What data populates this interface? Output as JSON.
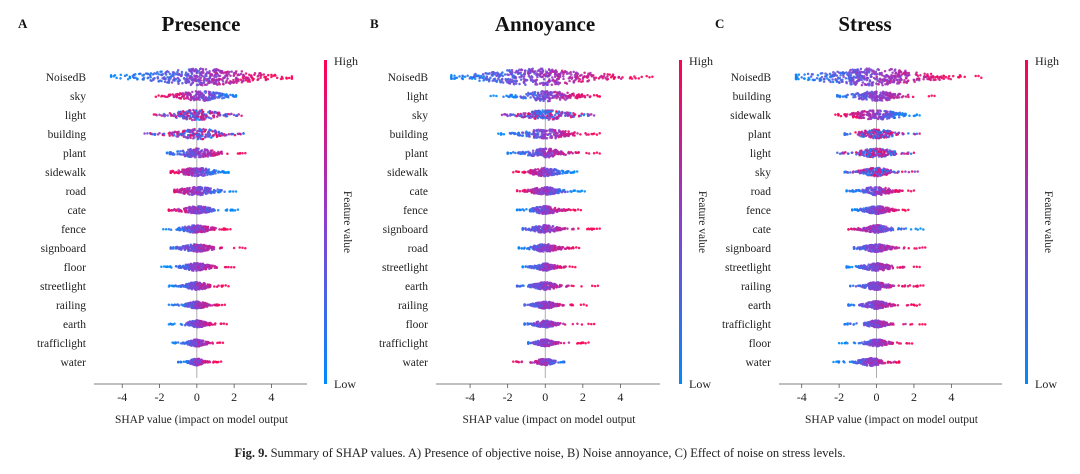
{
  "colors": {
    "high": "#ff0052",
    "low": "#008bfb",
    "mid": "#8a3fd0"
  },
  "chart_data": [
    {
      "type": "scatter",
      "subtype": "shap-beeswarm",
      "panel_letter": "A",
      "title": "Presence",
      "xlabel": "SHAP value (impact on model output",
      "xlim": [
        -5.3,
        5.8
      ],
      "xticks": [
        -4,
        -2,
        0,
        2,
        4
      ],
      "colorbar": {
        "high_label": "High",
        "low_label": "Low",
        "label": "Feature value"
      },
      "features": [
        {
          "name": "NoisedB",
          "min": -4.6,
          "max": 5.1,
          "center": 0.3,
          "spread": 1.9,
          "width": 1.0,
          "corr": 1
        },
        {
          "name": "sky",
          "min": -2.2,
          "max": 2.1,
          "center": 0.2,
          "spread": 0.8,
          "width": 0.75,
          "corr": -1
        },
        {
          "name": "light",
          "min": -2.3,
          "max": 2.4,
          "center": 0.0,
          "spread": 0.8,
          "width": 0.8,
          "corr": 0
        },
        {
          "name": "building",
          "min": -2.8,
          "max": 2.5,
          "center": 0.1,
          "spread": 0.8,
          "width": 0.8,
          "corr": 0
        },
        {
          "name": "plant",
          "min": -1.6,
          "max": 2.6,
          "center": 0.0,
          "spread": 0.7,
          "width": 0.7,
          "corr": 1
        },
        {
          "name": "sidewalk",
          "min": -1.4,
          "max": 1.7,
          "center": 0.0,
          "spread": 0.6,
          "width": 0.65,
          "corr": -1
        },
        {
          "name": "road",
          "min": -1.2,
          "max": 2.1,
          "center": 0.0,
          "spread": 0.6,
          "width": 0.65,
          "corr": -1
        },
        {
          "name": "cate",
          "min": -1.5,
          "max": 2.2,
          "center": 0.0,
          "spread": 0.5,
          "width": 0.6,
          "corr": -1
        },
        {
          "name": "fence",
          "min": -1.8,
          "max": 1.8,
          "center": 0.0,
          "spread": 0.5,
          "width": 0.6,
          "corr": 1
        },
        {
          "name": "signboard",
          "min": -1.4,
          "max": 2.6,
          "center": 0.0,
          "spread": 0.5,
          "width": 0.6,
          "corr": 1
        },
        {
          "name": "floor",
          "min": -1.9,
          "max": 2.0,
          "center": 0.0,
          "spread": 0.45,
          "width": 0.6,
          "corr": 1
        },
        {
          "name": "streetlight",
          "min": -1.5,
          "max": 1.7,
          "center": 0.0,
          "spread": 0.4,
          "width": 0.6,
          "corr": 1
        },
        {
          "name": "railing",
          "min": -1.5,
          "max": 1.5,
          "center": 0.0,
          "spread": 0.35,
          "width": 0.55,
          "corr": 1
        },
        {
          "name": "earth",
          "min": -1.5,
          "max": 1.6,
          "center": 0.0,
          "spread": 0.35,
          "width": 0.55,
          "corr": 1
        },
        {
          "name": "trafficlight",
          "min": -1.3,
          "max": 1.4,
          "center": 0.0,
          "spread": 0.3,
          "width": 0.55,
          "corr": 1
        },
        {
          "name": "water",
          "min": -1.0,
          "max": 1.3,
          "center": 0.0,
          "spread": 0.25,
          "width": 0.5,
          "corr": 1
        }
      ]
    },
    {
      "type": "scatter",
      "subtype": "shap-beeswarm",
      "panel_letter": "B",
      "title": "Annoyance",
      "xlabel": "SHAP value (impact on model output",
      "xlim": [
        -5.6,
        6.0
      ],
      "xticks": [
        -4,
        -2,
        0,
        2,
        4
      ],
      "colorbar": {
        "high_label": "High",
        "low_label": "Low",
        "label": "Feature value"
      },
      "features": [
        {
          "name": "NoisedB",
          "min": -5.0,
          "max": 5.7,
          "center": -0.4,
          "spread": 1.9,
          "width": 1.0,
          "corr": 1
        },
        {
          "name": "light",
          "min": -2.9,
          "max": 2.9,
          "center": 0.2,
          "spread": 0.9,
          "width": 0.8,
          "corr": 1
        },
        {
          "name": "sky",
          "min": -2.3,
          "max": 2.6,
          "center": 0.1,
          "spread": 0.8,
          "width": 0.75,
          "corr": 0
        },
        {
          "name": "building",
          "min": -2.5,
          "max": 2.9,
          "center": 0.1,
          "spread": 0.8,
          "width": 0.75,
          "corr": 1
        },
        {
          "name": "plant",
          "min": -2.0,
          "max": 2.9,
          "center": 0.0,
          "spread": 0.6,
          "width": 0.7,
          "corr": 1
        },
        {
          "name": "sidewalk",
          "min": -1.7,
          "max": 1.7,
          "center": 0.0,
          "spread": 0.5,
          "width": 0.65,
          "corr": -1
        },
        {
          "name": "cate",
          "min": -1.5,
          "max": 2.1,
          "center": 0.0,
          "spread": 0.5,
          "width": 0.6,
          "corr": -1
        },
        {
          "name": "fence",
          "min": -1.5,
          "max": 1.9,
          "center": 0.0,
          "spread": 0.45,
          "width": 0.6,
          "corr": 1
        },
        {
          "name": "signboard",
          "min": -1.2,
          "max": 2.9,
          "center": 0.0,
          "spread": 0.45,
          "width": 0.6,
          "corr": 1
        },
        {
          "name": "road",
          "min": -1.4,
          "max": 1.8,
          "center": 0.0,
          "spread": 0.45,
          "width": 0.6,
          "corr": 1
        },
        {
          "name": "streetlight",
          "min": -1.2,
          "max": 1.6,
          "center": 0.0,
          "spread": 0.35,
          "width": 0.55,
          "corr": 1
        },
        {
          "name": "earth",
          "min": -1.5,
          "max": 2.8,
          "center": 0.0,
          "spread": 0.4,
          "width": 0.6,
          "corr": 1
        },
        {
          "name": "railing",
          "min": -1.1,
          "max": 2.2,
          "center": 0.0,
          "spread": 0.35,
          "width": 0.55,
          "corr": 1
        },
        {
          "name": "floor",
          "min": -1.1,
          "max": 2.6,
          "center": 0.0,
          "spread": 0.35,
          "width": 0.55,
          "corr": 1
        },
        {
          "name": "trafficlight",
          "min": -0.9,
          "max": 2.3,
          "center": 0.0,
          "spread": 0.3,
          "width": 0.55,
          "corr": 1
        },
        {
          "name": "water",
          "min": -1.7,
          "max": 1.0,
          "center": 0.0,
          "spread": 0.3,
          "width": 0.5,
          "corr": -1
        }
      ]
    },
    {
      "type": "scatter",
      "subtype": "shap-beeswarm",
      "panel_letter": "C",
      "title": "Stress",
      "xlabel": "SHAP value (impact on model output",
      "xlim": [
        -5.0,
        6.6
      ],
      "xticks": [
        -4,
        -2,
        0,
        2,
        4
      ],
      "colorbar": {
        "high_label": "High",
        "low_label": "Low",
        "label": "Feature value"
      },
      "features": [
        {
          "name": "NoisedB",
          "min": -4.3,
          "max": 5.6,
          "center": -0.2,
          "spread": 1.9,
          "width": 1.0,
          "corr": 1
        },
        {
          "name": "building",
          "min": -2.1,
          "max": 3.1,
          "center": 0.0,
          "spread": 0.8,
          "width": 0.75,
          "corr": 1
        },
        {
          "name": "sidewalk",
          "min": -2.2,
          "max": 2.3,
          "center": 0.0,
          "spread": 0.8,
          "width": 0.75,
          "corr": -1
        },
        {
          "name": "plant",
          "min": -1.7,
          "max": 2.3,
          "center": 0.0,
          "spread": 0.6,
          "width": 0.7,
          "corr": 0
        },
        {
          "name": "light",
          "min": -2.1,
          "max": 2.0,
          "center": 0.0,
          "spread": 0.6,
          "width": 0.7,
          "corr": 0
        },
        {
          "name": "sky",
          "min": -1.7,
          "max": 2.2,
          "center": 0.0,
          "spread": 0.5,
          "width": 0.65,
          "corr": 0
        },
        {
          "name": "road",
          "min": -1.6,
          "max": 2.0,
          "center": 0.0,
          "spread": 0.5,
          "width": 0.65,
          "corr": 1
        },
        {
          "name": "fence",
          "min": -1.3,
          "max": 1.7,
          "center": 0.0,
          "spread": 0.45,
          "width": 0.6,
          "corr": 1
        },
        {
          "name": "cate",
          "min": -1.5,
          "max": 2.5,
          "center": 0.0,
          "spread": 0.45,
          "width": 0.6,
          "corr": -1
        },
        {
          "name": "signboard",
          "min": -1.2,
          "max": 2.6,
          "center": 0.0,
          "spread": 0.45,
          "width": 0.6,
          "corr": 1
        },
        {
          "name": "streetlight",
          "min": -1.6,
          "max": 2.3,
          "center": 0.0,
          "spread": 0.45,
          "width": 0.6,
          "corr": 1
        },
        {
          "name": "railing",
          "min": -1.4,
          "max": 2.5,
          "center": 0.0,
          "spread": 0.4,
          "width": 0.6,
          "corr": 1
        },
        {
          "name": "earth",
          "min": -1.5,
          "max": 2.3,
          "center": 0.0,
          "spread": 0.4,
          "width": 0.6,
          "corr": 1
        },
        {
          "name": "trafficlight",
          "min": -1.7,
          "max": 2.6,
          "center": 0.0,
          "spread": 0.35,
          "width": 0.55,
          "corr": 1
        },
        {
          "name": "floor",
          "min": -2.0,
          "max": 1.9,
          "center": 0.0,
          "spread": 0.35,
          "width": 0.55,
          "corr": 1
        },
        {
          "name": "water",
          "min": -2.3,
          "max": 1.2,
          "center": -0.3,
          "spread": 0.4,
          "width": 0.6,
          "corr": 1
        }
      ]
    }
  ],
  "caption": {
    "label": "Fig. 9.",
    "text": "Summary of SHAP values. A) Presence of objective noise, B) Noise annoyance, C) Effect of noise on stress levels."
  }
}
